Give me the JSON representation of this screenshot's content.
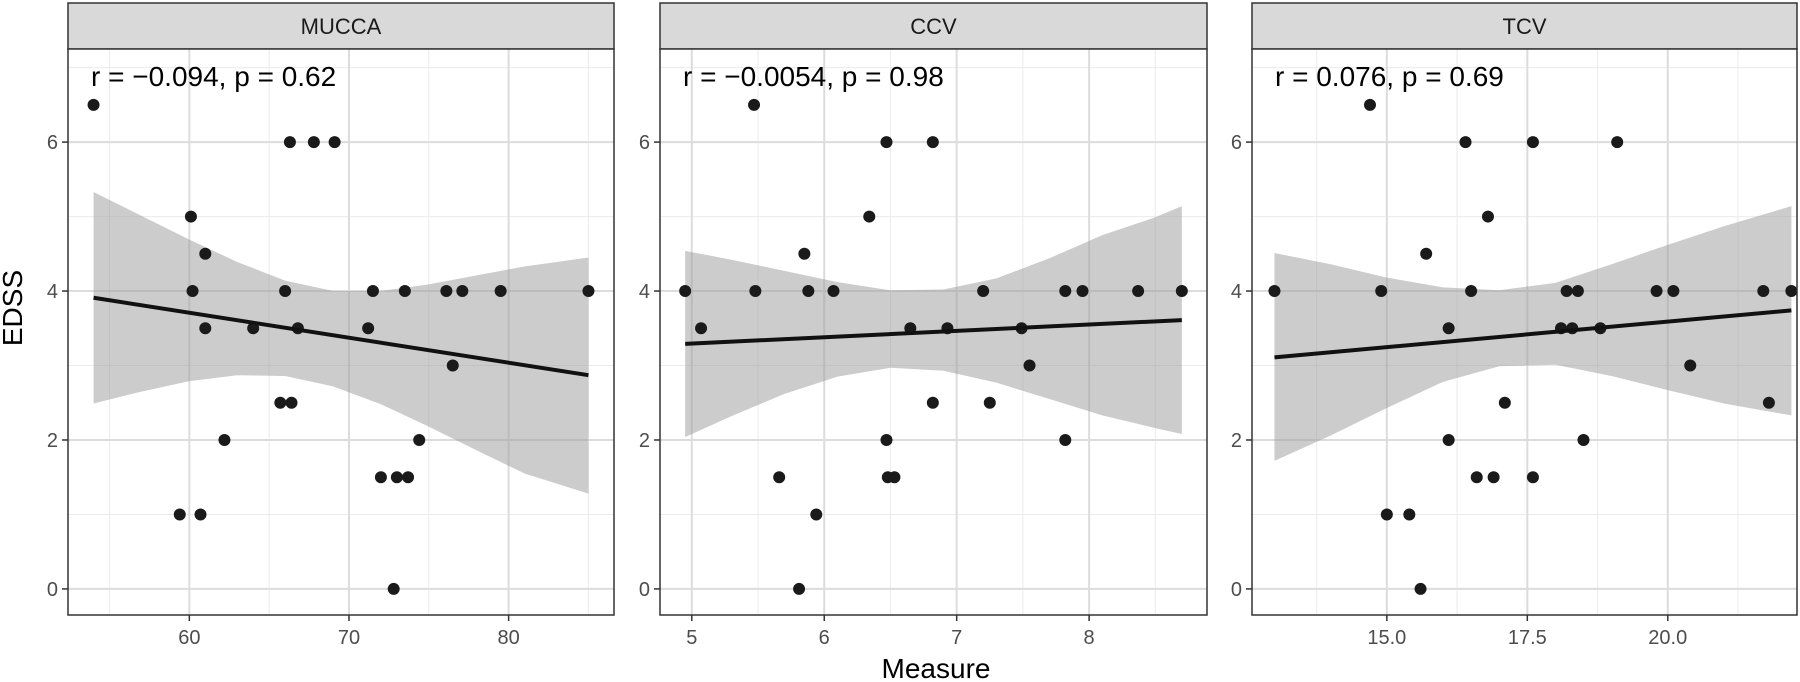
{
  "figure": {
    "xlabel": "Measure",
    "ylabel": "EDSS"
  },
  "chart_data": [
    {
      "type": "scatter",
      "panel": "MUCCA",
      "title": "MUCCA",
      "annotation": "r = −0.094, p = 0.62",
      "xlabel": "Measure",
      "ylabel": "EDSS",
      "xlim": [
        52.4,
        86.6
      ],
      "ylim": [
        -0.35,
        7.25
      ],
      "xticks": [
        60,
        70,
        80
      ],
      "xtick_labels": [
        "60",
        "70",
        "80"
      ],
      "yticks": [
        0,
        2,
        4,
        6
      ],
      "ytick_labels": [
        "0",
        "2",
        "4",
        "6"
      ],
      "grid": true,
      "points": [
        [
          54.0,
          6.5
        ],
        [
          59.4,
          1.0
        ],
        [
          60.1,
          5.0
        ],
        [
          60.2,
          4.0
        ],
        [
          60.7,
          1.0
        ],
        [
          61.0,
          4.5
        ],
        [
          61.0,
          3.5
        ],
        [
          62.2,
          2.0
        ],
        [
          64.0,
          3.5
        ],
        [
          65.7,
          2.5
        ],
        [
          66.0,
          4.0
        ],
        [
          66.3,
          6.0
        ],
        [
          66.4,
          2.5
        ],
        [
          66.8,
          3.5
        ],
        [
          67.8,
          6.0
        ],
        [
          69.1,
          6.0
        ],
        [
          71.2,
          3.5
        ],
        [
          71.5,
          4.0
        ],
        [
          72.0,
          1.5
        ],
        [
          72.8,
          0.0
        ],
        [
          73.0,
          1.5
        ],
        [
          73.5,
          4.0
        ],
        [
          73.7,
          1.5
        ],
        [
          74.4,
          2.0
        ],
        [
          76.1,
          4.0
        ],
        [
          76.5,
          3.0
        ],
        [
          77.1,
          4.0
        ],
        [
          79.5,
          4.0
        ],
        [
          85.0,
          4.0
        ]
      ],
      "fit": {
        "x": [
          54.0,
          85.0
        ],
        "y": [
          3.91,
          2.87
        ]
      },
      "band": {
        "x": [
          54.0,
          57.0,
          60.0,
          63.0,
          66.0,
          69.0,
          72.0,
          75.0,
          78.0,
          81.0,
          85.0
        ],
        "lower": [
          2.49,
          2.65,
          2.79,
          2.87,
          2.86,
          2.72,
          2.48,
          2.18,
          1.86,
          1.55,
          1.28
        ],
        "upper": [
          5.33,
          5.01,
          4.69,
          4.39,
          4.14,
          4.0,
          4.0,
          4.09,
          4.21,
          4.33,
          4.45
        ]
      }
    },
    {
      "type": "scatter",
      "panel": "CCV",
      "title": "CCV",
      "annotation": "r = −0.0054, p = 0.98",
      "xlabel": "Measure",
      "ylabel": "EDSS",
      "xlim": [
        4.76,
        8.89
      ],
      "ylim": [
        -0.35,
        7.25
      ],
      "xticks": [
        5,
        6,
        7,
        8
      ],
      "xtick_labels": [
        "5",
        "6",
        "7",
        "8"
      ],
      "yticks": [
        0,
        2,
        4,
        6
      ],
      "ytick_labels": [
        "0",
        "2",
        "4",
        "6"
      ],
      "grid": true,
      "points": [
        [
          4.95,
          4.0
        ],
        [
          5.07,
          3.5
        ],
        [
          5.47,
          6.5
        ],
        [
          5.48,
          4.0
        ],
        [
          5.66,
          1.5
        ],
        [
          5.81,
          0.0
        ],
        [
          5.85,
          4.5
        ],
        [
          5.88,
          4.0
        ],
        [
          5.94,
          1.0
        ],
        [
          6.07,
          4.0
        ],
        [
          6.34,
          5.0
        ],
        [
          6.47,
          6.0
        ],
        [
          6.47,
          2.0
        ],
        [
          6.48,
          1.5
        ],
        [
          6.53,
          1.5
        ],
        [
          6.65,
          3.5
        ],
        [
          6.82,
          6.0
        ],
        [
          6.82,
          2.5
        ],
        [
          6.93,
          3.5
        ],
        [
          7.2,
          4.0
        ],
        [
          7.25,
          2.5
        ],
        [
          7.49,
          3.5
        ],
        [
          7.55,
          3.0
        ],
        [
          7.82,
          4.0
        ],
        [
          7.82,
          2.0
        ],
        [
          7.95,
          4.0
        ],
        [
          8.37,
          4.0
        ],
        [
          8.7,
          4.0
        ]
      ],
      "fit": {
        "x": [
          4.95,
          8.7
        ],
        "y": [
          3.29,
          3.61
        ]
      },
      "band": {
        "x": [
          4.95,
          5.3,
          5.7,
          6.1,
          6.5,
          6.9,
          7.3,
          7.7,
          8.1,
          8.5,
          8.7
        ],
        "lower": [
          2.04,
          2.32,
          2.62,
          2.85,
          2.97,
          2.93,
          2.77,
          2.55,
          2.33,
          2.16,
          2.08
        ],
        "upper": [
          4.54,
          4.42,
          4.27,
          4.12,
          4.01,
          4.02,
          4.17,
          4.44,
          4.75,
          4.99,
          5.14
        ]
      }
    },
    {
      "type": "scatter",
      "panel": "TCV",
      "title": "TCV",
      "annotation": "r = 0.076, p = 0.69",
      "xlabel": "Measure",
      "ylabel": "EDSS",
      "xlim": [
        12.6,
        22.3
      ],
      "ylim": [
        -0.35,
        7.25
      ],
      "xticks": [
        15,
        17.5,
        20
      ],
      "xtick_labels": [
        "15.0",
        "17.5",
        "20.0"
      ],
      "yticks": [
        0,
        2,
        4,
        6
      ],
      "ytick_labels": [
        "0",
        "2",
        "4",
        "6"
      ],
      "grid": true,
      "points": [
        [
          13.0,
          4.0
        ],
        [
          14.7,
          6.5
        ],
        [
          14.9,
          4.0
        ],
        [
          15.0,
          1.0
        ],
        [
          15.4,
          1.0
        ],
        [
          15.6,
          0.0
        ],
        [
          15.7,
          4.5
        ],
        [
          16.1,
          3.5
        ],
        [
          16.1,
          2.0
        ],
        [
          16.4,
          6.0
        ],
        [
          16.5,
          4.0
        ],
        [
          16.6,
          1.5
        ],
        [
          16.8,
          5.0
        ],
        [
          16.9,
          1.5
        ],
        [
          17.1,
          2.5
        ],
        [
          17.6,
          6.0
        ],
        [
          17.6,
          1.5
        ],
        [
          18.1,
          3.5
        ],
        [
          18.2,
          4.0
        ],
        [
          18.3,
          3.5
        ],
        [
          18.4,
          4.0
        ],
        [
          18.5,
          2.0
        ],
        [
          18.8,
          3.5
        ],
        [
          19.1,
          6.0
        ],
        [
          19.8,
          4.0
        ],
        [
          20.1,
          4.0
        ],
        [
          20.4,
          3.0
        ],
        [
          21.7,
          4.0
        ],
        [
          21.8,
          2.5
        ],
        [
          22.2,
          4.0
        ]
      ],
      "fit": {
        "x": [
          13.0,
          22.2
        ],
        "y": [
          3.11,
          3.74
        ]
      },
      "band": {
        "x": [
          13.0,
          14.0,
          15.0,
          16.0,
          17.0,
          18.0,
          19.0,
          20.0,
          21.0,
          22.2
        ],
        "lower": [
          1.72,
          2.06,
          2.43,
          2.78,
          2.99,
          3.01,
          2.86,
          2.67,
          2.49,
          2.33
        ],
        "upper": [
          4.51,
          4.36,
          4.18,
          4.05,
          4.01,
          4.11,
          4.36,
          4.62,
          4.87,
          5.14
        ]
      }
    }
  ]
}
